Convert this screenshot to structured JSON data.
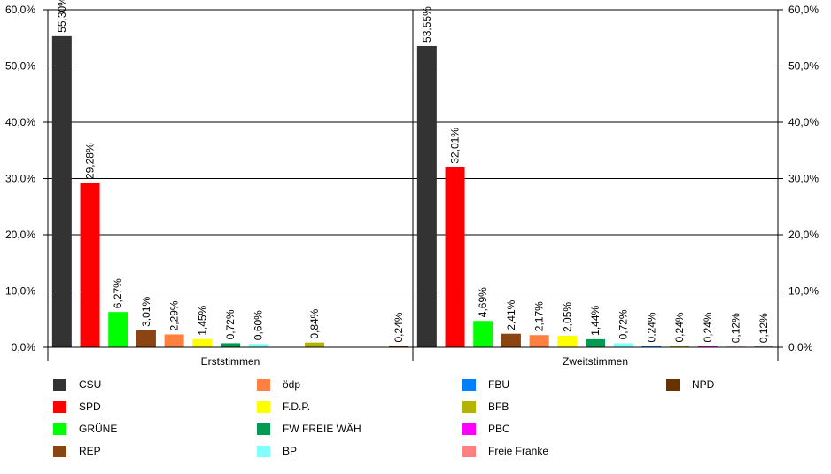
{
  "chart_data": {
    "type": "bar",
    "ylim": [
      0,
      60
    ],
    "y_ticks": [
      "0,0%",
      "10,0%",
      "20,0%",
      "30,0%",
      "40,0%",
      "50,0%",
      "60,0%"
    ],
    "grid": true,
    "legend_position": "bottom",
    "panels": [
      {
        "xlabel": "Erststimmen",
        "bars": [
          {
            "party": "CSU",
            "value": 55.3,
            "label": "55,30%"
          },
          {
            "party": "SPD",
            "value": 29.28,
            "label": "29,28%"
          },
          {
            "party": "GRÜNE",
            "value": 6.27,
            "label": "6,27%"
          },
          {
            "party": "REP",
            "value": 3.01,
            "label": "3,01%"
          },
          {
            "party": "ödp",
            "value": 2.29,
            "label": "2,29%"
          },
          {
            "party": "F.D.P.",
            "value": 1.45,
            "label": "1,45%"
          },
          {
            "party": "FW FREIE WÄH",
            "value": 0.72,
            "label": "0,72%"
          },
          {
            "party": "BP",
            "value": 0.6,
            "label": "0,60%"
          },
          {
            "party": "FBU",
            "value": null,
            "label": ""
          },
          {
            "party": "BFB",
            "value": 0.84,
            "label": "0,84%"
          },
          {
            "party": "PBC",
            "value": null,
            "label": ""
          },
          {
            "party": "Freie Franke",
            "value": null,
            "label": ""
          },
          {
            "party": "NPD",
            "value": 0.24,
            "label": "0,24%"
          }
        ]
      },
      {
        "xlabel": "Zweitstimmen",
        "bars": [
          {
            "party": "CSU",
            "value": 53.55,
            "label": "53,55%"
          },
          {
            "party": "SPD",
            "value": 32.01,
            "label": "32,01%"
          },
          {
            "party": "GRÜNE",
            "value": 4.69,
            "label": "4,69%"
          },
          {
            "party": "REP",
            "value": 2.41,
            "label": "2,41%"
          },
          {
            "party": "ödp",
            "value": 2.17,
            "label": "2,17%"
          },
          {
            "party": "F.D.P.",
            "value": 2.05,
            "label": "2,05%"
          },
          {
            "party": "FW FREIE WÄH",
            "value": 1.44,
            "label": "1,44%"
          },
          {
            "party": "BP",
            "value": 0.72,
            "label": "0,72%"
          },
          {
            "party": "FBU",
            "value": 0.24,
            "label": "0,24%"
          },
          {
            "party": "BFB",
            "value": 0.24,
            "label": "0,24%"
          },
          {
            "party": "PBC",
            "value": 0.24,
            "label": "0,24%"
          },
          {
            "party": "Freie Franke",
            "value": 0.12,
            "label": "0,12%"
          },
          {
            "party": "NPD",
            "value": 0.12,
            "label": "0,12%"
          }
        ]
      }
    ],
    "legend": [
      {
        "name": "CSU",
        "color": "#333333"
      },
      {
        "name": "SPD",
        "color": "#ff0000"
      },
      {
        "name": "GRÜNE",
        "color": "#00ff00"
      },
      {
        "name": "REP",
        "color": "#8b4513"
      },
      {
        "name": "ödp",
        "color": "#ff8040"
      },
      {
        "name": "F.D.P.",
        "color": "#ffff00"
      },
      {
        "name": "FW FREIE WÄH",
        "color": "#009a50"
      },
      {
        "name": "BP",
        "color": "#80ffff"
      },
      {
        "name": "FBU",
        "color": "#0080ff"
      },
      {
        "name": "BFB",
        "color": "#b4b400"
      },
      {
        "name": "PBC",
        "color": "#ff00ff"
      },
      {
        "name": "Freie Franke",
        "color": "#ff8080"
      },
      {
        "name": "NPD",
        "color": "#663300"
      }
    ]
  }
}
